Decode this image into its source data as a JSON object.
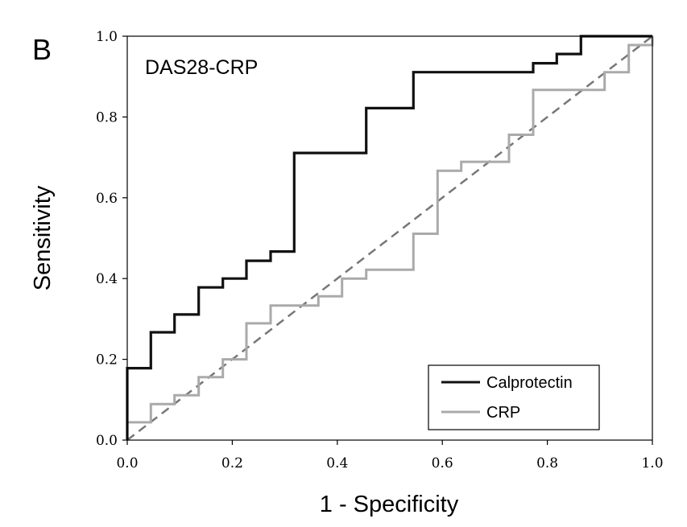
{
  "chart_data": {
    "type": "line",
    "panel_label": "B",
    "title": "DAS28-CRP",
    "xlabel": "1 - Specificity",
    "ylabel": "Sensitivity",
    "xlim": [
      0,
      1
    ],
    "ylim": [
      0,
      1
    ],
    "x_ticks": [
      "0.0",
      "0.2",
      "0.4",
      "0.6",
      "0.8",
      "1.0"
    ],
    "y_ticks": [
      "0.0",
      "0.2",
      "0.4",
      "0.6",
      "0.8",
      "1.0"
    ],
    "grid": false,
    "legend_position": "bottom-right",
    "series": [
      {
        "name": "Calprotectin",
        "color": "#111111",
        "style": "step",
        "x": [
          0,
          0,
          0.045,
          0.045,
          0.09,
          0.09,
          0.136,
          0.136,
          0.182,
          0.182,
          0.227,
          0.227,
          0.273,
          0.273,
          0.318,
          0.318,
          0.455,
          0.455,
          0.545,
          0.545,
          0.773,
          0.773,
          0.818,
          0.818,
          0.864,
          0.864,
          1.0
        ],
        "y": [
          0,
          0.178,
          0.178,
          0.267,
          0.267,
          0.311,
          0.311,
          0.378,
          0.378,
          0.4,
          0.4,
          0.444,
          0.444,
          0.467,
          0.467,
          0.711,
          0.711,
          0.822,
          0.822,
          0.911,
          0.911,
          0.933,
          0.933,
          0.956,
          0.956,
          1.0,
          1.0
        ]
      },
      {
        "name": "CRP",
        "color": "#aaaaaa",
        "style": "step",
        "x": [
          0,
          0,
          0.045,
          0.045,
          0.09,
          0.09,
          0.136,
          0.136,
          0.182,
          0.182,
          0.227,
          0.227,
          0.273,
          0.273,
          0.364,
          0.364,
          0.409,
          0.409,
          0.455,
          0.455,
          0.545,
          0.545,
          0.591,
          0.591,
          0.636,
          0.636,
          0.727,
          0.727,
          0.773,
          0.773,
          0.909,
          0.909,
          0.955,
          0.955,
          1.0,
          1.0
        ],
        "y": [
          0,
          0.044,
          0.044,
          0.089,
          0.089,
          0.111,
          0.111,
          0.156,
          0.156,
          0.2,
          0.2,
          0.289,
          0.289,
          0.333,
          0.333,
          0.356,
          0.356,
          0.4,
          0.4,
          0.422,
          0.422,
          0.511,
          0.511,
          0.667,
          0.667,
          0.689,
          0.689,
          0.756,
          0.756,
          0.867,
          0.867,
          0.911,
          0.911,
          0.978,
          0.978,
          1.0
        ]
      }
    ],
    "reference_line": {
      "x": [
        0,
        1
      ],
      "y": [
        0,
        1
      ],
      "color": "#777777",
      "style": "dashed"
    }
  }
}
